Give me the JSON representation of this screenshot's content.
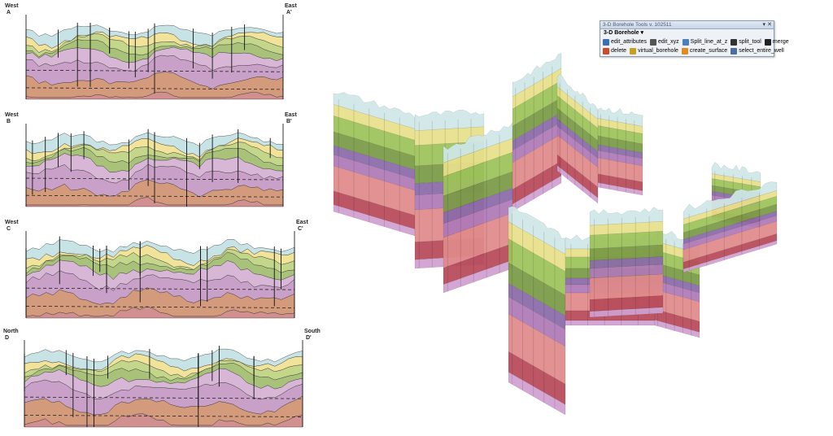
{
  "sections": [
    {
      "left_letter": "A",
      "right_letter": "A'",
      "left_head": "West",
      "right_head": "East"
    },
    {
      "left_letter": "B",
      "right_letter": "B'",
      "left_head": "West",
      "right_head": "East"
    },
    {
      "left_letter": "C",
      "right_letter": "C'",
      "left_head": "West",
      "right_head": "East"
    },
    {
      "left_letter": "D",
      "right_letter": "D'",
      "left_head": "North",
      "right_head": "South"
    }
  ],
  "toolbar": {
    "title": "3-D Borehole Tools v. 102511",
    "pin_icon": "pin-icon",
    "close_icon": "close-icon",
    "menu_label": "3-D Borehole",
    "menu_arrow": "▾",
    "row1": [
      {
        "label": "edit_attributes",
        "icon": "table-edit-icon",
        "color": "#3d6fb6"
      },
      {
        "label": "edit_xyz",
        "icon": "xyz-arrow-icon",
        "color": "#555555"
      },
      {
        "label": "Split_line_at_z",
        "icon": "split-line-icon",
        "color": "#4a7fc0"
      },
      {
        "label": "split_tool",
        "icon": "cursor-icon",
        "color": "#333333"
      },
      {
        "label": "merge",
        "icon": "check-icon",
        "color": "#222222"
      }
    ],
    "row2": [
      {
        "label": "delete",
        "icon": "delete-icon",
        "color": "#d04a2a"
      },
      {
        "label": "virtual_borehole",
        "icon": "pencil-icon",
        "color": "#c8a020"
      },
      {
        "label": "create_surface",
        "icon": "surface-icon",
        "color": "#e08a20"
      },
      {
        "label": "select_entire_well",
        "icon": "select-well-icon",
        "color": "#4a6fa0"
      }
    ]
  }
}
